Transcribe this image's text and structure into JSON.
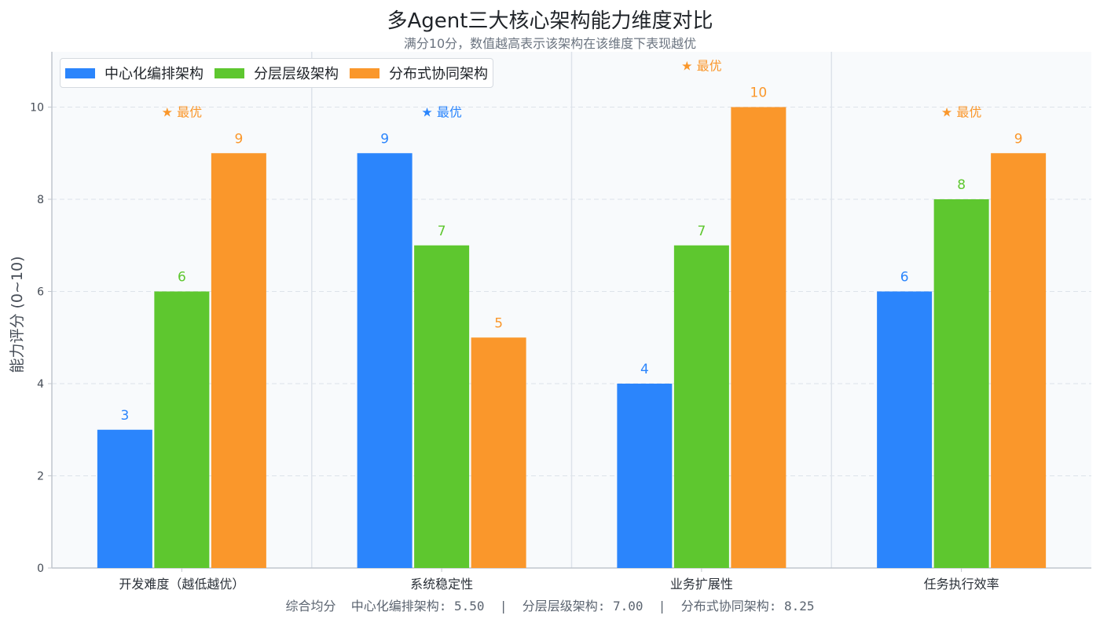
{
  "colors": {
    "series": [
      "#2b85fc",
      "#5ec72f",
      "#fa972b"
    ],
    "plot_bg": "#f8fafc",
    "grid": "#dde3ea",
    "axis": "#c0c6cd",
    "text": "#444b55"
  },
  "footer_text": "综合均分  中心化编排架构: 5.50  |  分层层级架构: 7.00  |  分布式协同架构: 8.25",
  "chart_data": {
    "type": "bar",
    "title": "多Agent三大核心架构能力维度对比",
    "subtitle": "满分10分，数值越高表示该架构在该维度下表现越优",
    "xlabel": "",
    "ylabel": "能力评分 (0~10)",
    "ylim": [
      0,
      11.2
    ],
    "yticks": [
      "0",
      "2",
      "4",
      "6",
      "8",
      "10"
    ],
    "grid": true,
    "legend_position": "top-left",
    "categories": [
      "开发难度（越低越优）",
      "系统稳定性",
      "业务扩展性",
      "任务执行效率"
    ],
    "series": [
      {
        "name": "中心化编排架构",
        "values": [
          3,
          9,
          4,
          6
        ]
      },
      {
        "name": "分层层级架构",
        "values": [
          6,
          7,
          7,
          8
        ]
      },
      {
        "name": "分布式协同架构",
        "values": [
          9,
          5,
          10,
          9
        ]
      }
    ],
    "best_label": "★ 最优",
    "best_series_index": [
      2,
      0,
      2,
      2
    ]
  }
}
